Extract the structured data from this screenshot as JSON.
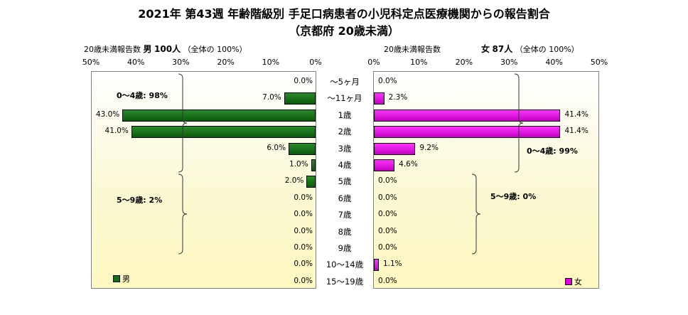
{
  "title": "2021年 第43週 年齢階級別 手足口病患者の小児科定点医療機関からの報告割合",
  "subtitle": "（京都府 20歳未満）",
  "male_header": {
    "prefix": "20歳未満報告数",
    "sex": "男",
    "count": "100人",
    "note": "（全体の 100%）"
  },
  "female_header": {
    "prefix": "20歳未満報告数",
    "sex": "女",
    "count": "87人",
    "note": "（全体の 100%）"
  },
  "chart_data": {
    "type": "bar",
    "categories": [
      "～5ヶ月",
      "～11ヶ月",
      "1歳",
      "2歳",
      "3歳",
      "4歳",
      "5歳",
      "6歳",
      "7歳",
      "8歳",
      "9歳",
      "10～14歳",
      "15～19歳"
    ],
    "series": [
      {
        "name": "男",
        "values": [
          0.0,
          7.0,
          43.0,
          41.0,
          6.0,
          1.0,
          2.0,
          0.0,
          0.0,
          0.0,
          0.0,
          0.0,
          0.0
        ],
        "labels": [
          "0.0%",
          "7.0%",
          "43.0%",
          "41.0%",
          "6.0%",
          "1.0%",
          "2.0%",
          "0.0%",
          "0.0%",
          "0.0%",
          "0.0%",
          "0.0%",
          "0.0%"
        ]
      },
      {
        "name": "女",
        "values": [
          0.0,
          2.3,
          41.4,
          41.4,
          9.2,
          4.6,
          0.0,
          0.0,
          0.0,
          0.0,
          0.0,
          1.1,
          0.0
        ],
        "labels": [
          "0.0%",
          "2.3%",
          "41.4%",
          "41.4%",
          "9.2%",
          "4.6%",
          "0.0%",
          "0.0%",
          "0.0%",
          "0.0%",
          "0.0%",
          "1.1%",
          "0.0%"
        ]
      }
    ],
    "xlim": [
      0,
      50
    ],
    "male_ticks": [
      "50%",
      "40%",
      "30%",
      "20%",
      "10%",
      "0%"
    ],
    "female_ticks": [
      "0%",
      "10%",
      "20%",
      "30%",
      "40%",
      "50%"
    ],
    "annotations": {
      "male_0_4": "0～4歳: 98%",
      "male_5_9": "5～9歳: 2%",
      "female_0_4": "0～4歳: 99%",
      "female_5_9": "5～9歳: 0%"
    },
    "legend_placement": "bottom-left / bottom-right",
    "colors": {
      "male": "#116d11",
      "female": "#dd00dd"
    }
  }
}
